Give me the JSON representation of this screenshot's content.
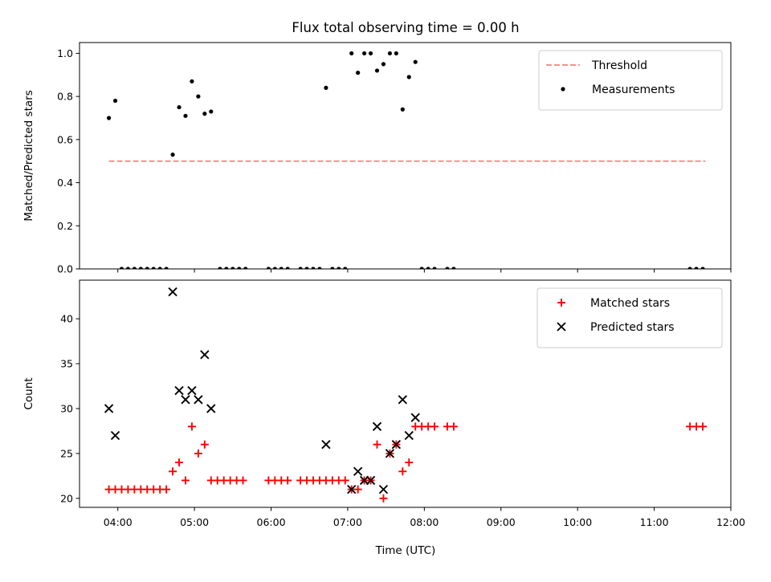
{
  "chart_data": {
    "title": "Flux total observing time = 0.00 h",
    "xlabel": "Time (UTC)",
    "x_ticks": [
      "04:00",
      "05:00",
      "06:00",
      "07:00",
      "08:00",
      "09:00",
      "10:00",
      "11:00",
      "12:00"
    ],
    "xlim": [
      "03:30",
      "12:00"
    ],
    "colors": {
      "threshold": "#ff7f7f",
      "matched": "#ff0000",
      "predicted": "#000000",
      "measurement": "#000000"
    },
    "panels": [
      {
        "type": "scatter",
        "ylabel": "Matched/Predicted stars",
        "ylim": [
          0,
          1.05
        ],
        "y_ticks": [
          "0.0",
          "0.2",
          "0.4",
          "0.6",
          "0.8",
          "1.0"
        ],
        "legend_position": "top-right",
        "threshold": {
          "name": "Threshold",
          "value": 0.5,
          "x_range": [
            "03:53",
            "11:40"
          ]
        },
        "series": [
          {
            "name": "Measurements",
            "points": [
              {
                "x": "03:53",
                "y": 0.7
              },
              {
                "x": "03:58",
                "y": 0.78
              },
              {
                "x": "04:03",
                "y": 0.0
              },
              {
                "x": "04:08",
                "y": 0.0
              },
              {
                "x": "04:13",
                "y": 0.0
              },
              {
                "x": "04:18",
                "y": 0.0
              },
              {
                "x": "04:23",
                "y": 0.0
              },
              {
                "x": "04:28",
                "y": 0.0
              },
              {
                "x": "04:33",
                "y": 0.0
              },
              {
                "x": "04:38",
                "y": 0.0
              },
              {
                "x": "04:43",
                "y": 0.53
              },
              {
                "x": "04:48",
                "y": 0.75
              },
              {
                "x": "04:53",
                "y": 0.71
              },
              {
                "x": "04:58",
                "y": 0.87
              },
              {
                "x": "05:03",
                "y": 0.8
              },
              {
                "x": "05:08",
                "y": 0.72
              },
              {
                "x": "05:13",
                "y": 0.73
              },
              {
                "x": "05:20",
                "y": 0.0
              },
              {
                "x": "05:25",
                "y": 0.0
              },
              {
                "x": "05:30",
                "y": 0.0
              },
              {
                "x": "05:35",
                "y": 0.0
              },
              {
                "x": "05:40",
                "y": 0.0
              },
              {
                "x": "05:58",
                "y": 0.0
              },
              {
                "x": "06:03",
                "y": 0.0
              },
              {
                "x": "06:08",
                "y": 0.0
              },
              {
                "x": "06:13",
                "y": 0.0
              },
              {
                "x": "06:23",
                "y": 0.0
              },
              {
                "x": "06:28",
                "y": 0.0
              },
              {
                "x": "06:33",
                "y": 0.0
              },
              {
                "x": "06:38",
                "y": 0.0
              },
              {
                "x": "06:43",
                "y": 0.84
              },
              {
                "x": "06:48",
                "y": 0.0
              },
              {
                "x": "06:53",
                "y": 0.0
              },
              {
                "x": "06:58",
                "y": 0.0
              },
              {
                "x": "07:03",
                "y": 1.0
              },
              {
                "x": "07:08",
                "y": 0.91
              },
              {
                "x": "07:13",
                "y": 1.0
              },
              {
                "x": "07:18",
                "y": 1.0
              },
              {
                "x": "07:23",
                "y": 0.92
              },
              {
                "x": "07:28",
                "y": 0.95
              },
              {
                "x": "07:33",
                "y": 1.0
              },
              {
                "x": "07:38",
                "y": 1.0
              },
              {
                "x": "07:43",
                "y": 0.74
              },
              {
                "x": "07:48",
                "y": 0.89
              },
              {
                "x": "07:53",
                "y": 0.96
              },
              {
                "x": "07:58",
                "y": 0.0
              },
              {
                "x": "08:03",
                "y": 0.0
              },
              {
                "x": "08:08",
                "y": 0.0
              },
              {
                "x": "08:18",
                "y": 0.0
              },
              {
                "x": "08:23",
                "y": 0.0
              },
              {
                "x": "11:28",
                "y": 0.0
              },
              {
                "x": "11:33",
                "y": 0.0
              },
              {
                "x": "11:38",
                "y": 0.0
              }
            ]
          }
        ]
      },
      {
        "type": "scatter",
        "ylabel": "Count",
        "ylim": [
          19,
          44.3
        ],
        "y_ticks": [
          "20",
          "25",
          "30",
          "35",
          "40"
        ],
        "legend_position": "top-right",
        "series": [
          {
            "name": "Matched stars",
            "marker": "plus",
            "points": [
              {
                "x": "03:53",
                "y": 21
              },
              {
                "x": "03:58",
                "y": 21
              },
              {
                "x": "04:03",
                "y": 21
              },
              {
                "x": "04:08",
                "y": 21
              },
              {
                "x": "04:13",
                "y": 21
              },
              {
                "x": "04:18",
                "y": 21
              },
              {
                "x": "04:23",
                "y": 21
              },
              {
                "x": "04:28",
                "y": 21
              },
              {
                "x": "04:33",
                "y": 21
              },
              {
                "x": "04:38",
                "y": 21
              },
              {
                "x": "04:43",
                "y": 23
              },
              {
                "x": "04:48",
                "y": 24
              },
              {
                "x": "04:53",
                "y": 22
              },
              {
                "x": "04:58",
                "y": 28
              },
              {
                "x": "05:03",
                "y": 25
              },
              {
                "x": "05:08",
                "y": 26
              },
              {
                "x": "05:13",
                "y": 22
              },
              {
                "x": "05:18",
                "y": 22
              },
              {
                "x": "05:23",
                "y": 22
              },
              {
                "x": "05:28",
                "y": 22
              },
              {
                "x": "05:33",
                "y": 22
              },
              {
                "x": "05:38",
                "y": 22
              },
              {
                "x": "05:58",
                "y": 22
              },
              {
                "x": "06:03",
                "y": 22
              },
              {
                "x": "06:08",
                "y": 22
              },
              {
                "x": "06:13",
                "y": 22
              },
              {
                "x": "06:23",
                "y": 22
              },
              {
                "x": "06:28",
                "y": 22
              },
              {
                "x": "06:33",
                "y": 22
              },
              {
                "x": "06:38",
                "y": 22
              },
              {
                "x": "06:43",
                "y": 22
              },
              {
                "x": "06:48",
                "y": 22
              },
              {
                "x": "06:53",
                "y": 22
              },
              {
                "x": "06:58",
                "y": 22
              },
              {
                "x": "07:03",
                "y": 21
              },
              {
                "x": "07:08",
                "y": 21
              },
              {
                "x": "07:13",
                "y": 22
              },
              {
                "x": "07:18",
                "y": 22
              },
              {
                "x": "07:23",
                "y": 26
              },
              {
                "x": "07:28",
                "y": 20
              },
              {
                "x": "07:33",
                "y": 25
              },
              {
                "x": "07:38",
                "y": 26
              },
              {
                "x": "07:43",
                "y": 23
              },
              {
                "x": "07:48",
                "y": 24
              },
              {
                "x": "07:53",
                "y": 28
              },
              {
                "x": "07:58",
                "y": 28
              },
              {
                "x": "08:03",
                "y": 28
              },
              {
                "x": "08:08",
                "y": 28
              },
              {
                "x": "08:18",
                "y": 28
              },
              {
                "x": "08:23",
                "y": 28
              },
              {
                "x": "11:28",
                "y": 28
              },
              {
                "x": "11:33",
                "y": 28
              },
              {
                "x": "11:38",
                "y": 28
              }
            ]
          },
          {
            "name": "Predicted stars",
            "marker": "x",
            "points": [
              {
                "x": "03:53",
                "y": 30
              },
              {
                "x": "03:58",
                "y": 27
              },
              {
                "x": "04:43",
                "y": 43
              },
              {
                "x": "04:48",
                "y": 32
              },
              {
                "x": "04:53",
                "y": 31
              },
              {
                "x": "04:58",
                "y": 32
              },
              {
                "x": "05:03",
                "y": 31
              },
              {
                "x": "05:08",
                "y": 36
              },
              {
                "x": "05:13",
                "y": 30
              },
              {
                "x": "06:43",
                "y": 26
              },
              {
                "x": "07:03",
                "y": 21
              },
              {
                "x": "07:08",
                "y": 23
              },
              {
                "x": "07:13",
                "y": 22
              },
              {
                "x": "07:18",
                "y": 22
              },
              {
                "x": "07:23",
                "y": 28
              },
              {
                "x": "07:28",
                "y": 21
              },
              {
                "x": "07:33",
                "y": 25
              },
              {
                "x": "07:38",
                "y": 26
              },
              {
                "x": "07:43",
                "y": 31
              },
              {
                "x": "07:48",
                "y": 27
              },
              {
                "x": "07:53",
                "y": 29
              }
            ]
          }
        ]
      }
    ]
  }
}
